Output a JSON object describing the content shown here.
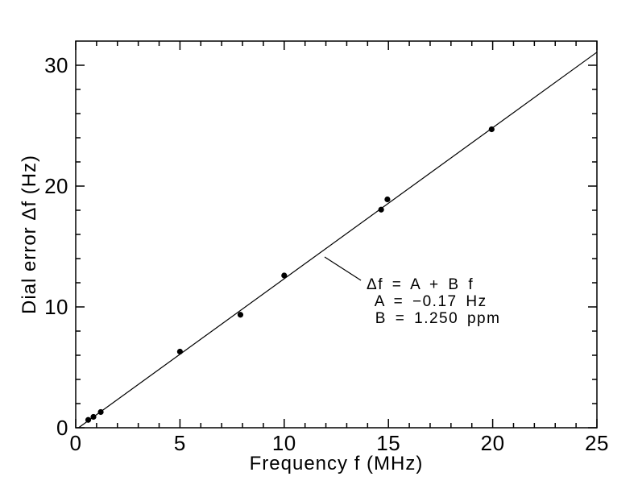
{
  "figure": {
    "background_color": "#ffffff",
    "foreground_color": "#000000",
    "marker_color": "#000000"
  },
  "chart_data": {
    "type": "scatter",
    "title": "",
    "xlabel": "Frequency f (MHz)",
    "ylabel": "Dial error Δf (Hz)",
    "xlim": [
      0,
      25
    ],
    "ylim": [
      0,
      32
    ],
    "x_major_ticks": [
      0,
      5,
      10,
      15,
      20,
      25
    ],
    "x_minor_step": 1,
    "y_major_ticks": [
      0,
      10,
      20,
      30
    ],
    "y_minor_step": 2,
    "grid": false,
    "legend": "none",
    "points": [
      {
        "x": 0.6,
        "y": 0.65
      },
      {
        "x": 0.85,
        "y": 0.9
      },
      {
        "x": 1.2,
        "y": 1.3
      },
      {
        "x": 5.0,
        "y": 6.3
      },
      {
        "x": 7.9,
        "y": 9.35
      },
      {
        "x": 10.0,
        "y": 12.6
      },
      {
        "x": 14.65,
        "y": 18.05
      },
      {
        "x": 14.95,
        "y": 18.9
      },
      {
        "x": 19.95,
        "y": 24.7
      }
    ],
    "fit_line": {
      "A": -0.17,
      "B": 1.25,
      "x_end": 25
    },
    "annotation": {
      "lines": [
        "Δf = A + B f",
        " A = −0.17 Hz",
        " B = 1.250 ppm"
      ],
      "leader_from": {
        "x": 11.94,
        "y": 14.13
      },
      "leader_to": {
        "x": 13.68,
        "y": 12.2
      },
      "anchor": {
        "x": 13.95,
        "y": 11.47
      }
    }
  }
}
